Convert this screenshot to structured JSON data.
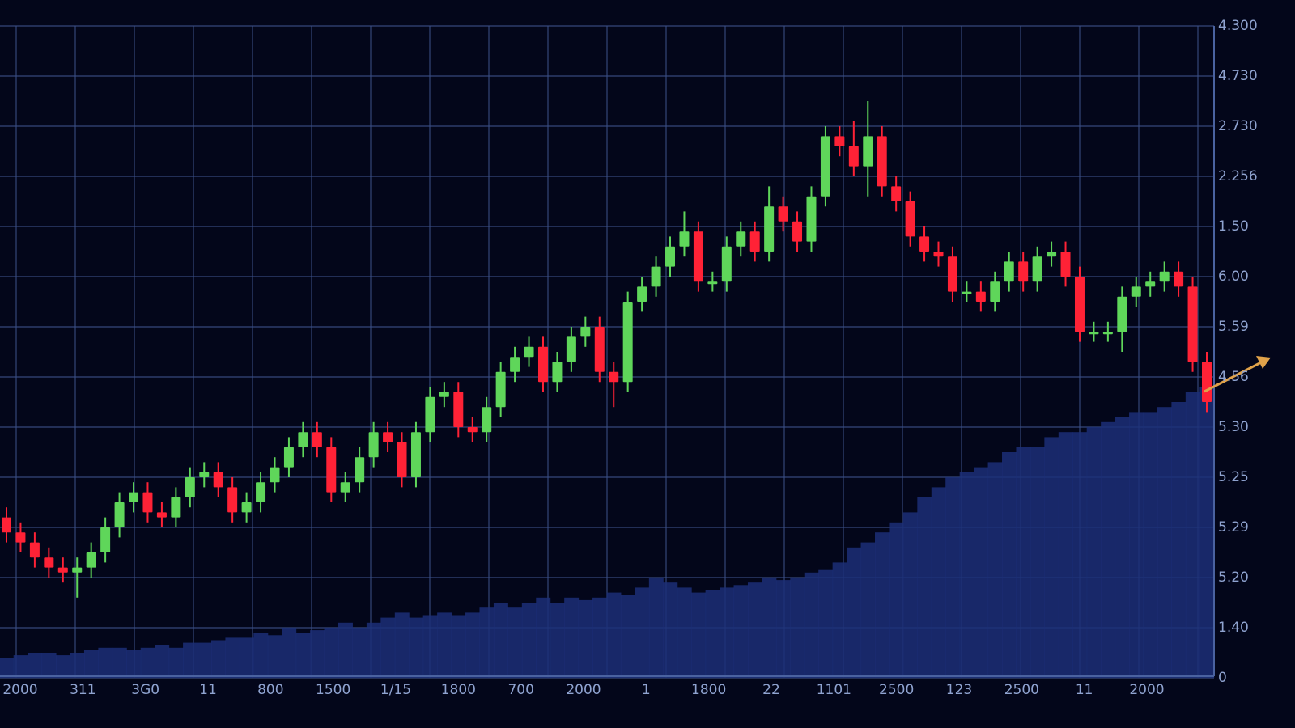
{
  "chart_data": {
    "type": "candlestick",
    "up_color": "#5fd65a",
    "down_color": "#ff2236",
    "volume_color": "#1c2f78",
    "grid": true,
    "ylim": [
      0,
      13
    ],
    "yticks": [
      {
        "value": 0,
        "label": "0"
      },
      {
        "value": 1,
        "label": "1.40"
      },
      {
        "value": 2,
        "label": "5.20"
      },
      {
        "value": 3,
        "label": "5.29"
      },
      {
        "value": 4,
        "label": "5.25"
      },
      {
        "value": 5,
        "label": "5.30"
      },
      {
        "value": 6,
        "label": "4.56"
      },
      {
        "value": 7,
        "label": "5.59"
      },
      {
        "value": 8,
        "label": "6.00"
      },
      {
        "value": 9,
        "label": "1.50"
      },
      {
        "value": 10,
        "label": "2.256"
      },
      {
        "value": 11,
        "label": "2.730"
      },
      {
        "value": 12,
        "label": "4.730"
      },
      {
        "value": 13,
        "label": "4.300"
      }
    ],
    "x_labels": [
      "2000",
      "311",
      "3G0",
      "11",
      "800",
      "1500",
      "1/15",
      "1800",
      "700",
      "2000",
      "1",
      "1800",
      "22",
      "1101",
      "2500",
      "123",
      "2500",
      "11",
      "2000"
    ],
    "open": [
      3.2,
      2.9,
      2.7,
      2.4,
      2.2,
      2.1,
      2.2,
      2.5,
      3.0,
      3.5,
      3.7,
      3.3,
      3.2,
      3.6,
      4.0,
      4.1,
      3.8,
      3.3,
      3.5,
      3.9,
      4.2,
      4.6,
      4.9,
      4.6,
      3.7,
      3.9,
      4.4,
      4.9,
      4.7,
      4.0,
      4.9,
      5.6,
      5.7,
      5.0,
      4.9,
      5.4,
      6.1,
      6.4,
      6.6,
      5.9,
      6.3,
      6.8,
      7.0,
      6.1,
      5.9,
      7.5,
      7.8,
      8.2,
      8.6,
      8.9,
      7.9,
      7.9,
      8.6,
      8.9,
      8.5,
      9.4,
      9.1,
      8.7,
      9.6,
      10.8,
      10.6,
      10.2,
      10.8,
      9.8,
      9.5,
      8.8,
      8.5,
      8.4,
      7.7,
      7.7,
      7.5,
      7.9,
      8.3,
      7.9,
      8.4,
      8.5,
      8.0,
      6.9,
      6.9,
      6.9,
      7.6,
      7.8,
      7.9,
      8.1,
      7.8,
      6.3
    ],
    "high": [
      3.4,
      3.1,
      2.9,
      2.6,
      2.4,
      2.4,
      2.7,
      3.2,
      3.7,
      3.9,
      3.9,
      3.5,
      3.8,
      4.2,
      4.3,
      4.3,
      4.0,
      3.7,
      4.1,
      4.4,
      4.8,
      5.1,
      5.1,
      4.8,
      4.1,
      4.6,
      5.1,
      5.1,
      4.9,
      5.1,
      5.8,
      5.9,
      5.9,
      5.2,
      5.6,
      6.3,
      6.6,
      6.8,
      6.8,
      6.5,
      7.0,
      7.2,
      7.2,
      6.3,
      7.7,
      8.0,
      8.4,
      8.8,
      9.3,
      9.1,
      8.1,
      8.8,
      9.1,
      9.1,
      9.8,
      9.6,
      9.3,
      9.8,
      11.0,
      11.0,
      11.1,
      11.5,
      11.0,
      10.0,
      9.7,
      9.0,
      8.7,
      8.6,
      7.9,
      7.9,
      8.1,
      8.5,
      8.5,
      8.6,
      8.7,
      8.7,
      8.2,
      7.1,
      7.1,
      7.8,
      8.0,
      8.1,
      8.3,
      8.3,
      8.0,
      6.5
    ],
    "low": [
      2.7,
      2.5,
      2.2,
      2.0,
      1.9,
      1.6,
      2.0,
      2.3,
      2.8,
      3.3,
      3.1,
      3.0,
      3.0,
      3.4,
      3.8,
      3.6,
      3.1,
      3.1,
      3.3,
      3.7,
      4.0,
      4.4,
      4.4,
      3.5,
      3.5,
      3.7,
      4.2,
      4.5,
      3.8,
      3.8,
      4.7,
      5.4,
      4.8,
      4.7,
      4.7,
      5.2,
      5.9,
      6.2,
      5.7,
      5.7,
      6.1,
      6.6,
      5.9,
      5.4,
      5.7,
      7.3,
      7.6,
      8.0,
      8.4,
      7.7,
      7.7,
      7.7,
      8.4,
      8.3,
      8.3,
      8.9,
      8.5,
      8.5,
      9.4,
      10.4,
      10.0,
      9.6,
      9.6,
      9.3,
      8.6,
      8.3,
      8.2,
      7.5,
      7.5,
      7.3,
      7.3,
      7.7,
      7.7,
      7.7,
      8.2,
      7.8,
      6.7,
      6.7,
      6.7,
      6.5,
      7.4,
      7.6,
      7.7,
      7.6,
      6.1,
      5.3
    ],
    "close": [
      2.9,
      2.7,
      2.4,
      2.2,
      2.1,
      2.2,
      2.5,
      3.0,
      3.5,
      3.7,
      3.3,
      3.2,
      3.6,
      4.0,
      4.1,
      3.8,
      3.3,
      3.5,
      3.9,
      4.2,
      4.6,
      4.9,
      4.6,
      3.7,
      3.9,
      4.4,
      4.9,
      4.7,
      4.0,
      4.9,
      5.6,
      5.7,
      5.0,
      4.9,
      5.4,
      6.1,
      6.4,
      6.6,
      5.9,
      6.3,
      6.8,
      7.0,
      6.1,
      5.9,
      7.5,
      7.8,
      8.2,
      8.6,
      8.9,
      7.9,
      7.9,
      8.6,
      8.9,
      8.5,
      9.4,
      9.1,
      8.7,
      9.6,
      10.8,
      10.6,
      10.2,
      10.8,
      9.8,
      9.5,
      8.8,
      8.5,
      8.4,
      7.7,
      7.7,
      7.5,
      7.9,
      8.3,
      7.9,
      8.4,
      8.5,
      8.0,
      6.9,
      6.9,
      6.9,
      7.6,
      7.8,
      7.9,
      8.1,
      7.8,
      6.3,
      5.5
    ],
    "volume": [
      0.4,
      0.45,
      0.5,
      0.5,
      0.45,
      0.5,
      0.55,
      0.6,
      0.6,
      0.55,
      0.6,
      0.65,
      0.6,
      0.7,
      0.7,
      0.75,
      0.8,
      0.8,
      0.9,
      0.85,
      1.0,
      0.9,
      0.95,
      1.0,
      1.1,
      1.0,
      1.1,
      1.2,
      1.3,
      1.2,
      1.25,
      1.3,
      1.25,
      1.3,
      1.4,
      1.5,
      1.4,
      1.5,
      1.6,
      1.5,
      1.6,
      1.55,
      1.6,
      1.7,
      1.65,
      1.8,
      2.0,
      1.9,
      1.8,
      1.7,
      1.75,
      1.8,
      1.85,
      1.9,
      2.0,
      1.95,
      2.0,
      2.1,
      2.15,
      2.3,
      2.6,
      2.7,
      2.9,
      3.1,
      3.3,
      3.6,
      3.8,
      4.0,
      4.1,
      4.2,
      4.3,
      4.5,
      4.6,
      4.6,
      4.8,
      4.9,
      4.9,
      5.0,
      5.1,
      5.2,
      5.3,
      5.3,
      5.4,
      5.5,
      5.7,
      5.8
    ]
  }
}
